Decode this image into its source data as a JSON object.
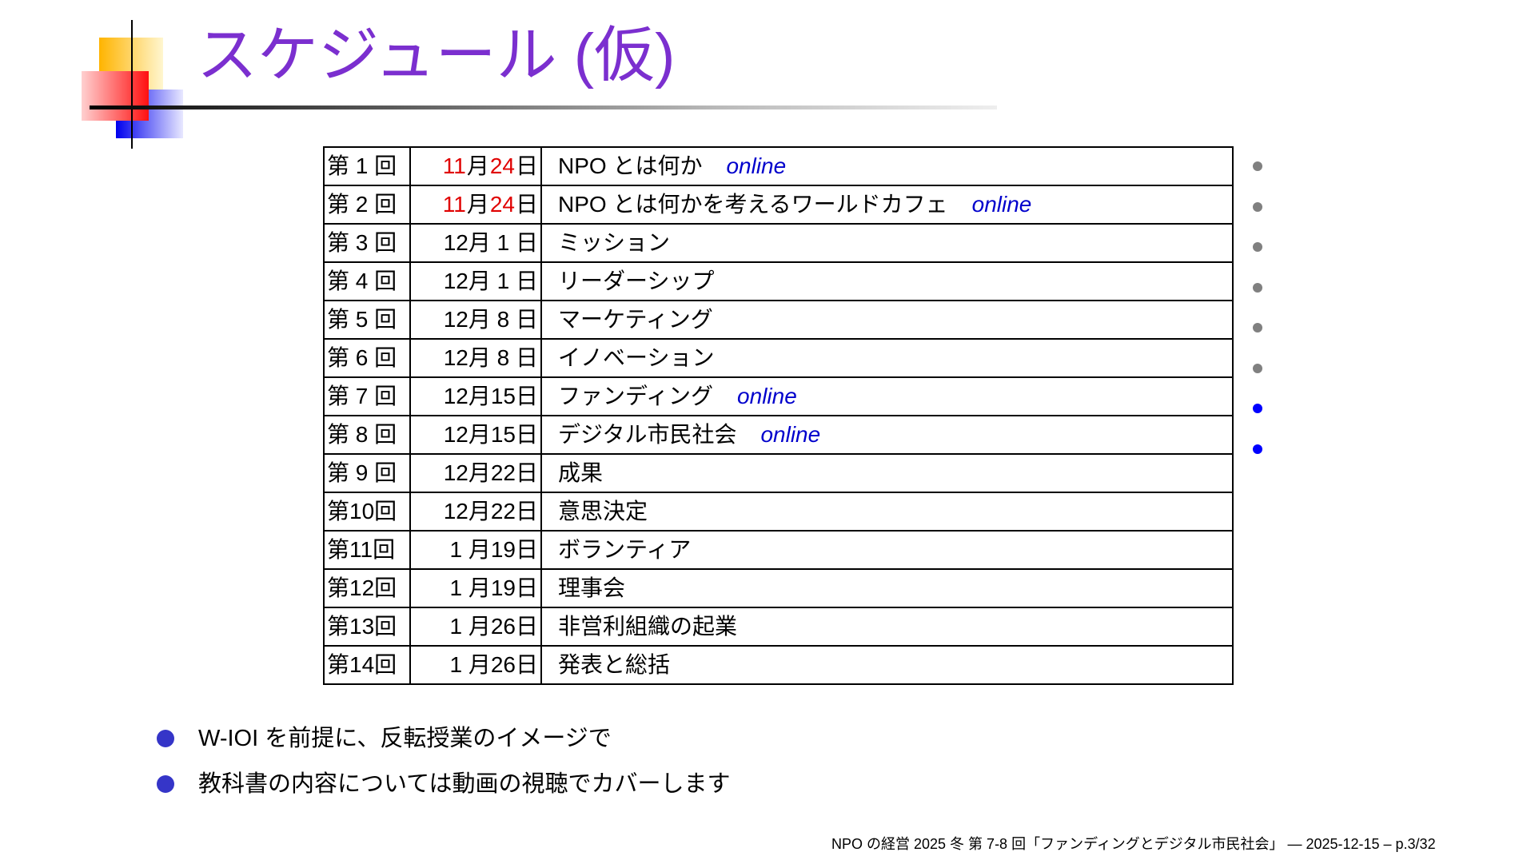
{
  "title": "スケジュール (仮)",
  "colors": {
    "title": "#7b2fcf",
    "date_highlight": "#e00000",
    "online": "#0000cc",
    "status_past": "#808080",
    "status_current": "#0000ff",
    "bullet": "#3535c8"
  },
  "schedule": [
    {
      "num": "第 1 回",
      "date": [
        {
          "t": "11",
          "red": true
        },
        {
          "t": "月"
        },
        {
          "t": "24",
          "red": true
        },
        {
          "t": "日"
        }
      ],
      "topic": "NPO とは何か",
      "online": "online",
      "status": "past"
    },
    {
      "num": "第 2 回",
      "date": [
        {
          "t": "11",
          "red": true
        },
        {
          "t": "月"
        },
        {
          "t": "24",
          "red": true
        },
        {
          "t": "日"
        }
      ],
      "topic": "NPO とは何かを考えるワールドカフェ",
      "online": "online",
      "status": "past"
    },
    {
      "num": "第 3 回",
      "date": [
        {
          "t": "12月 1 日"
        }
      ],
      "topic": "ミッション",
      "status": "past"
    },
    {
      "num": "第 4 回",
      "date": [
        {
          "t": "12月 1 日"
        }
      ],
      "topic": "リーダーシップ",
      "status": "past"
    },
    {
      "num": "第 5 回",
      "date": [
        {
          "t": "12月 8 日"
        }
      ],
      "topic": "マーケティング",
      "status": "past"
    },
    {
      "num": "第 6 回",
      "date": [
        {
          "t": "12月 8 日"
        }
      ],
      "topic": "イノベーション",
      "status": "past"
    },
    {
      "num": "第 7 回",
      "date": [
        {
          "t": "12月15日"
        }
      ],
      "topic": "ファンディング",
      "online": "online",
      "status": "current"
    },
    {
      "num": "第 8 回",
      "date": [
        {
          "t": "12月15日"
        }
      ],
      "topic": "デジタル市民社会",
      "online": "online",
      "status": "current"
    },
    {
      "num": "第 9 回",
      "date": [
        {
          "t": "12月22日"
        }
      ],
      "topic": "成果"
    },
    {
      "num": "第10回",
      "date": [
        {
          "t": "12月22日"
        }
      ],
      "topic": "意思決定"
    },
    {
      "num": "第11回",
      "date": [
        {
          "t": "1 月19日"
        }
      ],
      "topic": "ボランティア"
    },
    {
      "num": "第12回",
      "date": [
        {
          "t": "1 月19日"
        }
      ],
      "topic": "理事会"
    },
    {
      "num": "第13回",
      "date": [
        {
          "t": "1 月26日"
        }
      ],
      "topic": "非営利組織の起業"
    },
    {
      "num": "第14回",
      "date": [
        {
          "t": "1 月26日"
        }
      ],
      "topic": "発表と総括"
    }
  ],
  "bullets": [
    "W-IOI を前提に、反転授業のイメージで",
    "教科書の内容については動画の視聴でカバーします"
  ],
  "footer": "NPO の経営 2025 冬 第 7-8 回「ファンディングとデジタル市民社会」 — 2025-12-15 – p.3/32"
}
